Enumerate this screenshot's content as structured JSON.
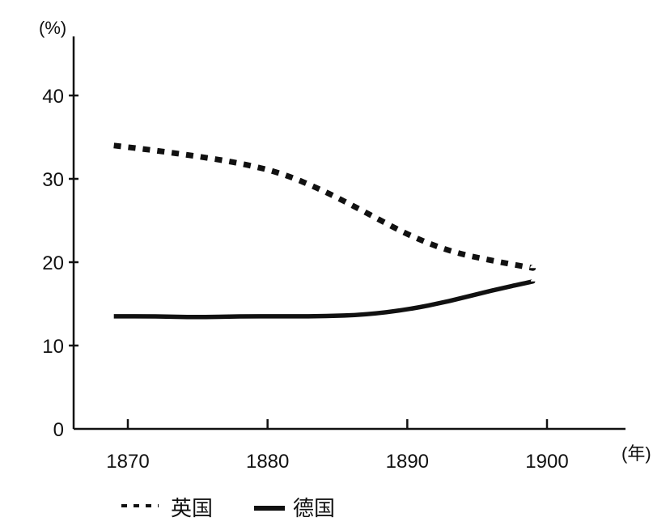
{
  "chart_data": {
    "type": "line",
    "ylabel": "(%)",
    "xlabel": "(年)",
    "x_ticks": [
      "1870",
      "1880",
      "1890",
      "1900"
    ],
    "y_ticks": [
      "0",
      "10",
      "20",
      "30",
      "40"
    ],
    "xlim": [
      1866,
      1905
    ],
    "ylim": [
      0,
      45
    ],
    "grid": false,
    "legend_position": "bottom-left",
    "series": [
      {
        "name": "英国",
        "style": "dashed",
        "color": "#111111",
        "points": [
          {
            "x": 1869,
            "y": 34
          },
          {
            "x": 1872,
            "y": 33.4
          },
          {
            "x": 1875,
            "y": 32.7
          },
          {
            "x": 1878,
            "y": 31.9
          },
          {
            "x": 1881,
            "y": 30.7
          },
          {
            "x": 1884,
            "y": 28.6
          },
          {
            "x": 1887,
            "y": 26
          },
          {
            "x": 1890,
            "y": 23.3
          },
          {
            "x": 1893,
            "y": 21.3
          },
          {
            "x": 1896,
            "y": 20.2
          },
          {
            "x": 1899,
            "y": 19.3
          }
        ]
      },
      {
        "name": "德国",
        "style": "solid",
        "color": "#111111",
        "points": [
          {
            "x": 1869,
            "y": 13.5
          },
          {
            "x": 1872,
            "y": 13.5
          },
          {
            "x": 1875,
            "y": 13.4
          },
          {
            "x": 1878,
            "y": 13.5
          },
          {
            "x": 1881,
            "y": 13.5
          },
          {
            "x": 1884,
            "y": 13.5
          },
          {
            "x": 1887,
            "y": 13.7
          },
          {
            "x": 1890,
            "y": 14.3
          },
          {
            "x": 1893,
            "y": 15.3
          },
          {
            "x": 1896,
            "y": 16.6
          },
          {
            "x": 1899,
            "y": 17.7
          }
        ]
      }
    ]
  }
}
